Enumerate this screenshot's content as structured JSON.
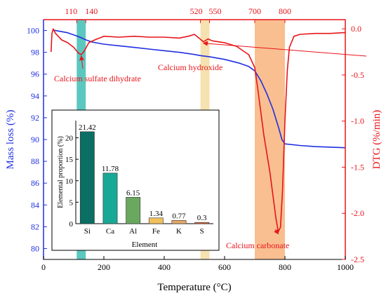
{
  "chart_data": {
    "type": "line",
    "x_axis": {
      "label": "Temperature (°C)",
      "range": [
        0,
        1000
      ],
      "ticks": [
        0,
        200,
        400,
        600,
        800,
        1000
      ]
    },
    "y_left": {
      "label": "Mass loss (%)",
      "range": [
        79,
        101
      ],
      "ticks": [
        80,
        82,
        84,
        86,
        88,
        90,
        92,
        94,
        96,
        98,
        100
      ],
      "color": "#1f2fe0"
    },
    "y_right": {
      "label": "DTG (%/min)",
      "range": [
        -2.5,
        0.1
      ],
      "ticks": [
        0.0,
        -0.5,
        -1.0,
        -1.5,
        -2.0,
        -2.5
      ],
      "tick_labels": [
        "0.0",
        "-0.5",
        "-1.0",
        "-1.5",
        "-2.0",
        "-2.5"
      ],
      "color": "#e8141a"
    },
    "top_markers": [
      {
        "label": "110",
        "x": 110
      },
      {
        "label": "140",
        "x": 140
      },
      {
        "label": "520",
        "x": 520
      },
      {
        "label": "550",
        "x": 550
      },
      {
        "label": "700",
        "x": 700
      },
      {
        "label": "800",
        "x": 800
      }
    ],
    "bands": [
      {
        "from": 110,
        "to": 140,
        "color": "#3fbdb3"
      },
      {
        "from": 520,
        "to": 550,
        "color": "#f5dca2"
      },
      {
        "from": 700,
        "to": 800,
        "color": "#f8b47c"
      }
    ],
    "series": [
      {
        "name": "Mass loss",
        "axis": "left",
        "color": "#1f2fe0",
        "points": [
          [
            30,
            100.05
          ],
          [
            50,
            99.95
          ],
          [
            80,
            99.8
          ],
          [
            100,
            99.6
          ],
          [
            120,
            99.4
          ],
          [
            140,
            99.15
          ],
          [
            160,
            98.95
          ],
          [
            200,
            98.75
          ],
          [
            250,
            98.6
          ],
          [
            300,
            98.45
          ],
          [
            350,
            98.3
          ],
          [
            400,
            98.15
          ],
          [
            450,
            98.0
          ],
          [
            500,
            97.8
          ],
          [
            520,
            97.7
          ],
          [
            550,
            97.6
          ],
          [
            600,
            97.35
          ],
          [
            650,
            97.0
          ],
          [
            680,
            96.7
          ],
          [
            700,
            96.3
          ],
          [
            720,
            95.4
          ],
          [
            740,
            94.2
          ],
          [
            760,
            92.8
          ],
          [
            780,
            91.0
          ],
          [
            790,
            90.0
          ],
          [
            800,
            89.6
          ],
          [
            850,
            89.45
          ],
          [
            900,
            89.35
          ],
          [
            1000,
            89.25
          ]
        ]
      },
      {
        "name": "DTG",
        "axis": "right",
        "color": "#e8141a",
        "points": [
          [
            25,
            -0.25
          ],
          [
            28,
            -0.05
          ],
          [
            32,
            0.0
          ],
          [
            40,
            -0.05
          ],
          [
            60,
            -0.12
          ],
          [
            80,
            -0.15
          ],
          [
            100,
            -0.2
          ],
          [
            115,
            -0.26
          ],
          [
            125,
            -0.28
          ],
          [
            135,
            -0.24
          ],
          [
            150,
            -0.15
          ],
          [
            170,
            -0.12
          ],
          [
            200,
            -0.08
          ],
          [
            250,
            -0.09
          ],
          [
            300,
            -0.08
          ],
          [
            350,
            -0.09
          ],
          [
            400,
            -0.09
          ],
          [
            450,
            -0.1
          ],
          [
            480,
            -0.08
          ],
          [
            500,
            -0.06
          ],
          [
            515,
            -0.1
          ],
          [
            530,
            -0.14
          ],
          [
            545,
            -0.11
          ],
          [
            560,
            -0.13
          ],
          [
            600,
            -0.15
          ],
          [
            640,
            -0.19
          ],
          [
            680,
            -0.28
          ],
          [
            700,
            -0.42
          ],
          [
            710,
            -0.65
          ],
          [
            720,
            -0.9
          ],
          [
            730,
            -1.15
          ],
          [
            740,
            -1.35
          ],
          [
            750,
            -1.55
          ],
          [
            760,
            -1.8
          ],
          [
            770,
            -2.05
          ],
          [
            778,
            -2.2
          ],
          [
            785,
            -2.15
          ],
          [
            792,
            -1.75
          ],
          [
            800,
            -1.0
          ],
          [
            808,
            -0.45
          ],
          [
            815,
            -0.2
          ],
          [
            830,
            -0.08
          ],
          [
            850,
            -0.06
          ],
          [
            900,
            -0.05
          ],
          [
            950,
            -0.05
          ],
          [
            1000,
            -0.04
          ]
        ]
      }
    ],
    "annotations": [
      {
        "text": "Calcium sulfate dihydrate",
        "x": 125,
        "y_right": -0.28,
        "color": "#e8141a"
      },
      {
        "text": "Calcium hydroxide",
        "x": 530,
        "y_right": -0.14,
        "color": "#e8141a"
      },
      {
        "text": "Calcium carbonate",
        "x": 778,
        "y_right": -2.2,
        "color": "#e8141a"
      }
    ],
    "inset": {
      "type": "bar",
      "categories": [
        "Si",
        "Ca",
        "Al",
        "Fe",
        "K",
        "S"
      ],
      "values": [
        21.42,
        11.78,
        6.15,
        1.34,
        0.77,
        0.3
      ],
      "value_labels": [
        "21.42",
        "11.78",
        "6.15",
        "1.34",
        "0.77",
        "0.3"
      ],
      "colors": [
        "#0b6f63",
        "#18a896",
        "#6aa860",
        "#f1c15e",
        "#e7a86a",
        "#e0673c"
      ],
      "xlabel": "Element",
      "ylabel": "Elemental proportion (%)",
      "ylim": [
        0,
        24
      ],
      "yticks": [
        0,
        5,
        10,
        15,
        20
      ]
    }
  }
}
